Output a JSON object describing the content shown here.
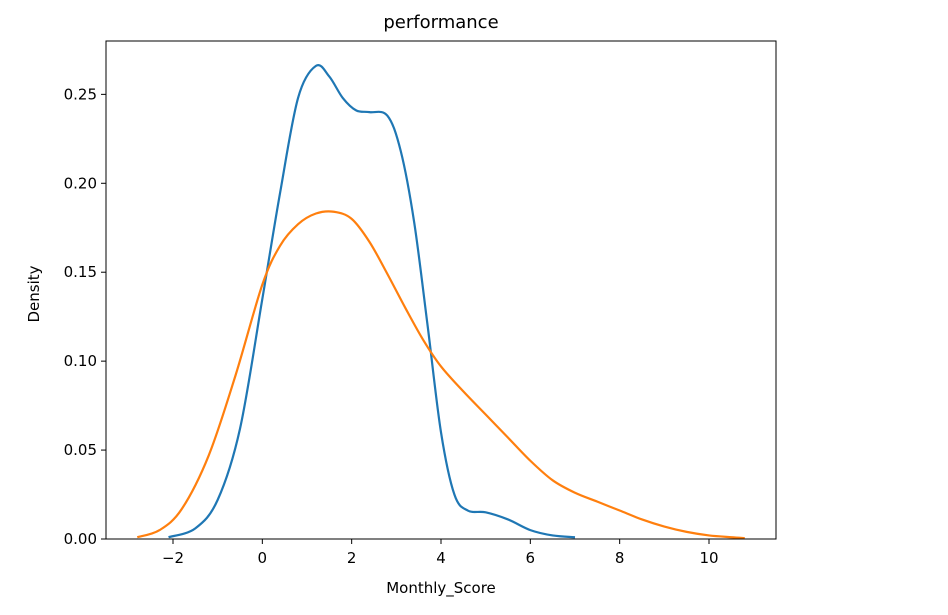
{
  "chart_data": {
    "type": "line",
    "title": "performance",
    "xlabel": "Monthly_Score",
    "ylabel": "Density",
    "xlim": [
      -3.5,
      11.5
    ],
    "ylim": [
      0,
      0.28
    ],
    "xticks": [
      -2,
      0,
      2,
      4,
      6,
      8,
      10
    ],
    "xtick_labels": [
      "−2",
      "0",
      "2",
      "4",
      "6",
      "8",
      "10"
    ],
    "yticks": [
      0.0,
      0.05,
      0.1,
      0.15,
      0.2,
      0.25
    ],
    "ytick_labels": [
      "0.00",
      "0.05",
      "0.10",
      "0.15",
      "0.20",
      "0.25"
    ],
    "grid": false,
    "series": [
      {
        "color": "#1f77b4",
        "x": [
          -2.1,
          -1.5,
          -1.0,
          -0.5,
          0.0,
          0.4,
          0.8,
          1.2,
          1.5,
          1.8,
          2.1,
          2.4,
          2.8,
          3.1,
          3.4,
          3.7,
          4.0,
          4.3,
          4.6,
          5.0,
          5.5,
          6.0,
          6.5,
          7.0
        ],
        "y": [
          0.001,
          0.006,
          0.022,
          0.062,
          0.135,
          0.195,
          0.248,
          0.266,
          0.26,
          0.248,
          0.241,
          0.24,
          0.238,
          0.218,
          0.178,
          0.12,
          0.06,
          0.025,
          0.016,
          0.015,
          0.011,
          0.005,
          0.002,
          0.001
        ]
      },
      {
        "color": "#ff7f0e",
        "x": [
          -2.8,
          -2.3,
          -1.8,
          -1.2,
          -0.6,
          0.0,
          0.4,
          0.8,
          1.2,
          1.6,
          2.0,
          2.4,
          2.8,
          3.2,
          3.6,
          4.0,
          4.5,
          5.0,
          5.5,
          6.0,
          6.5,
          7.0,
          7.5,
          8.0,
          8.5,
          9.0,
          9.5,
          10.0,
          10.5,
          10.8
        ],
        "y": [
          0.001,
          0.005,
          0.017,
          0.047,
          0.092,
          0.143,
          0.165,
          0.177,
          0.183,
          0.184,
          0.18,
          0.167,
          0.149,
          0.13,
          0.112,
          0.097,
          0.083,
          0.07,
          0.057,
          0.044,
          0.033,
          0.026,
          0.021,
          0.016,
          0.011,
          0.007,
          0.004,
          0.002,
          0.001,
          0.0005
        ]
      }
    ]
  }
}
